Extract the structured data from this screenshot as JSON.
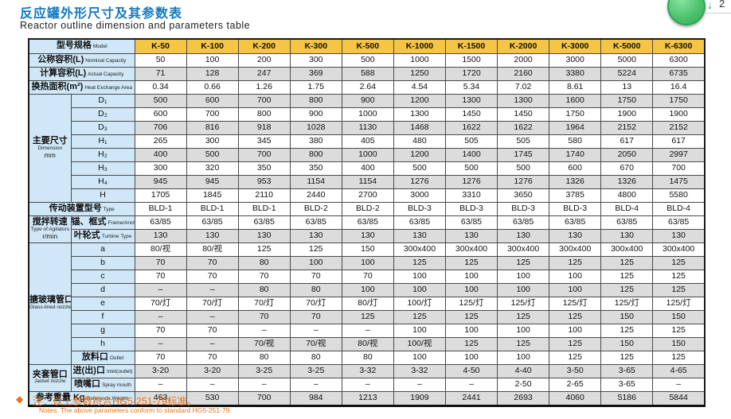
{
  "page": {
    "title_zh": "反应罐外形尺寸及其参数表",
    "title_en": "Reactor outline dimension and parameters table",
    "note_diamond": "◆",
    "note_zh": "注：以上参数符合HG5-251-79标准。",
    "note_en": "Notes: The above parameters conform to standard HG5-251-79.",
    "download_arrow": "↓",
    "download_count": "2"
  },
  "colors": {
    "title_blue": "#1478be",
    "header_orange": "#f6c544",
    "label_blue": "#cfe7f7",
    "row_gray": "#dcdcdc",
    "note_orange": "#e8731a",
    "green_button": "#49c06a"
  },
  "chart_data": {
    "type": "table",
    "title": "反应罐外形尺寸及其参数表 / Reactor outline dimension and parameters table",
    "columns": [
      "K-50",
      "K-100",
      "K-200",
      "K-300",
      "K-500",
      "K-1000",
      "K-1500",
      "K-2000",
      "K-3000",
      "K-5000",
      "K-6300"
    ]
  },
  "table": {
    "header": {
      "zh": "型号规格",
      "en": "Model"
    },
    "models": [
      "K-50",
      "K-100",
      "K-200",
      "K-300",
      "K-500",
      "K-1000",
      "K-1500",
      "K-2000",
      "K-3000",
      "K-5000",
      "K-6300"
    ],
    "rows": [
      {
        "kind": "full",
        "zh": "公称容积(L)",
        "en": "Nominal Capacity",
        "shaded": false,
        "values": [
          "50",
          "100",
          "200",
          "300",
          "500",
          "1000",
          "1500",
          "2000",
          "3000",
          "5000",
          "6300"
        ]
      },
      {
        "kind": "full",
        "zh": "计算容积(L)",
        "en": "Actual Capacity",
        "shaded": true,
        "values": [
          "71",
          "128",
          "247",
          "369",
          "588",
          "1250",
          "1720",
          "2160",
          "3380",
          "5224",
          "6735"
        ]
      },
      {
        "kind": "full",
        "zh": "换热面积(m²)",
        "en": "Heat Exchange Area",
        "shaded": false,
        "values": [
          "0.34",
          "0.66",
          "1.26",
          "1.75",
          "2.64",
          "4.54",
          "5.34",
          "7.02",
          "8.61",
          "13",
          "16.4"
        ]
      },
      {
        "kind": "sub",
        "label_zh": "D₁",
        "label_en": "",
        "shaded": true,
        "group": {
          "zh": "主要尺寸",
          "en": "Dimension",
          "unit": "mm",
          "span": 8
        },
        "values": [
          "500",
          "600",
          "700",
          "800",
          "900",
          "1200",
          "1300",
          "1300",
          "1600",
          "1750",
          "1750"
        ]
      },
      {
        "kind": "sub",
        "label_zh": "D₂",
        "label_en": "",
        "shaded": false,
        "values": [
          "600",
          "700",
          "800",
          "900",
          "1000",
          "1300",
          "1450",
          "1450",
          "1750",
          "1900",
          "1900"
        ]
      },
      {
        "kind": "sub",
        "label_zh": "D₃",
        "label_en": "",
        "shaded": true,
        "values": [
          "706",
          "816",
          "918",
          "1028",
          "1130",
          "1468",
          "1622",
          "1622",
          "1964",
          "2152",
          "2152"
        ]
      },
      {
        "kind": "sub",
        "label_zh": "H₁",
        "label_en": "",
        "shaded": false,
        "values": [
          "265",
          "300",
          "345",
          "380",
          "405",
          "480",
          "505",
          "505",
          "580",
          "617",
          "617"
        ]
      },
      {
        "kind": "sub",
        "label_zh": "H₂",
        "label_en": "",
        "shaded": true,
        "values": [
          "400",
          "500",
          "700",
          "800",
          "1000",
          "1200",
          "1400",
          "1745",
          "1740",
          "2050",
          "2997"
        ]
      },
      {
        "kind": "sub",
        "label_zh": "H₃",
        "label_en": "",
        "shaded": false,
        "values": [
          "300",
          "320",
          "350",
          "350",
          "400",
          "500",
          "500",
          "500",
          "600",
          "670",
          "700"
        ]
      },
      {
        "kind": "sub",
        "label_zh": "H₄",
        "label_en": "",
        "shaded": true,
        "values": [
          "945",
          "945",
          "953",
          "1154",
          "1154",
          "1276",
          "1276",
          "1276",
          "1326",
          "1326",
          "1475"
        ]
      },
      {
        "kind": "sub",
        "label_zh": "H",
        "label_en": "",
        "shaded": false,
        "values": [
          "1705",
          "1845",
          "2110",
          "2440",
          "2700",
          "3000",
          "3310",
          "3650",
          "3785",
          "4800",
          "5580"
        ]
      },
      {
        "kind": "full",
        "zh": "传动装置型号",
        "en": "Type",
        "shaded": false,
        "values": [
          "BLD-1",
          "BLD-1",
          "BLD-1",
          "BLD-2",
          "BLD-2",
          "BLD-3",
          "BLD-3",
          "BLD-3",
          "BLD-3",
          "BLD-4",
          "BLD-4"
        ]
      },
      {
        "kind": "sub",
        "label_zh": "锚、框式",
        "label_en": "Frame/Anchor Type",
        "shaded": false,
        "group": {
          "zh": "搅拌转速",
          "en": "Type of Agitators",
          "unit": "r/min",
          "span": 2
        },
        "values": [
          "63/85",
          "63/85",
          "63/85",
          "63/85",
          "63/85",
          "63/85",
          "63/85",
          "63/85",
          "63/85",
          "63/85",
          "63/85"
        ]
      },
      {
        "kind": "sub",
        "label_zh": "叶轮式",
        "label_en": "Turbine Type",
        "shaded": true,
        "values": [
          "130",
          "130",
          "130",
          "130",
          "130",
          "130",
          "130",
          "130",
          "130",
          "130",
          "130"
        ]
      },
      {
        "kind": "sub",
        "label_zh": "a",
        "label_en": "",
        "shaded": false,
        "group": {
          "zh": "搪玻璃管口",
          "en": "Glass-lined nozzle",
          "unit": "",
          "span": 9
        },
        "values": [
          "80/视",
          "80/视",
          "125",
          "125",
          "150",
          "300x400",
          "300x400",
          "300x400",
          "300x400",
          "300x400",
          "300x400"
        ]
      },
      {
        "kind": "sub",
        "label_zh": "b",
        "label_en": "",
        "shaded": true,
        "values": [
          "70",
          "70",
          "80",
          "100",
          "100",
          "125",
          "125",
          "125",
          "125",
          "125",
          "125"
        ]
      },
      {
        "kind": "sub",
        "label_zh": "c",
        "label_en": "",
        "shaded": false,
        "values": [
          "70",
          "70",
          "70",
          "70",
          "70",
          "100",
          "100",
          "100",
          "100",
          "125",
          "125"
        ]
      },
      {
        "kind": "sub",
        "label_zh": "d",
        "label_en": "",
        "shaded": true,
        "values": [
          "–",
          "–",
          "80",
          "80",
          "100",
          "100",
          "100",
          "100",
          "100",
          "125",
          "125"
        ]
      },
      {
        "kind": "sub",
        "label_zh": "e",
        "label_en": "",
        "shaded": false,
        "values": [
          "70/灯",
          "70/灯",
          "70/灯",
          "70/灯",
          "80/灯",
          "100/灯",
          "125/灯",
          "125/灯",
          "125/灯",
          "125/灯",
          "125/灯"
        ]
      },
      {
        "kind": "sub",
        "label_zh": "f",
        "label_en": "",
        "shaded": true,
        "values": [
          "–",
          "–",
          "70",
          "70",
          "125",
          "125",
          "125",
          "125",
          "125",
          "150",
          "150"
        ]
      },
      {
        "kind": "sub",
        "label_zh": "g",
        "label_en": "",
        "shaded": false,
        "values": [
          "70",
          "70",
          "–",
          "–",
          "–",
          "100",
          "100",
          "100",
          "100",
          "125",
          "125"
        ]
      },
      {
        "kind": "sub",
        "label_zh": "h",
        "label_en": "",
        "shaded": true,
        "values": [
          "–",
          "–",
          "70/视",
          "70/视",
          "80/视",
          "100/视",
          "125",
          "125",
          "125",
          "150",
          "150"
        ]
      },
      {
        "kind": "sub",
        "label_zh": "放料口",
        "label_en": "Outlet",
        "shaded": false,
        "values": [
          "70",
          "70",
          "80",
          "80",
          "80",
          "100",
          "100",
          "100",
          "125",
          "125",
          "125"
        ]
      },
      {
        "kind": "sub",
        "label_zh": "进(出)口",
        "label_en": "Inlet(outlet)",
        "shaded": true,
        "group": {
          "zh": "夹套管口",
          "en": "Jacket nozzle",
          "unit": "",
          "span": 2
        },
        "values": [
          "3-20",
          "3-20",
          "3-25",
          "3-25",
          "3-32",
          "3-32",
          "4-50",
          "4-40",
          "3-50",
          "3-65",
          "4-65"
        ]
      },
      {
        "kind": "sub",
        "label_zh": "喷嘴口",
        "label_en": "Spray mouth",
        "shaded": false,
        "values": [
          "–",
          "–",
          "–",
          "–",
          "–",
          "–",
          "–",
          "2-50",
          "2-65",
          "3-65",
          "–"
        ]
      },
      {
        "kind": "full",
        "zh": "参考重量 Kg",
        "en": "Reference Weight",
        "shaded": true,
        "values": [
          "463",
          "530",
          "700",
          "984",
          "1213",
          "1909",
          "2441",
          "2693",
          "4060",
          "5186",
          "5844"
        ]
      }
    ]
  }
}
